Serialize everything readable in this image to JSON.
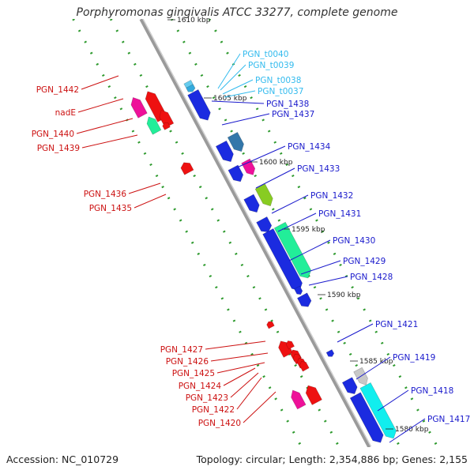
{
  "title": "Porphyromonas gingivalis ATCC 33277, complete genome",
  "footer": {
    "accession": "Accession: NC_010729",
    "summary": "Topology: circular; Length: 2,354,886 bp; Genes: 2,155"
  },
  "colors": {
    "backbone": "#9a9a9a",
    "tick_dots": "#2e9a2e",
    "label_forward": "#1a1acc",
    "label_reverse": "#cc1111",
    "label_rna": "#33bbee"
  },
  "axis": {
    "scale_labels": [
      "1610 kbp",
      "1605 kbp",
      "1600 kbp",
      "1595 kbp",
      "1590 kbp",
      "1585 kbp",
      "1580 kbp"
    ]
  },
  "genes": {
    "forward": [
      "PGN_1438",
      "PGN_1437",
      "PGN_1434",
      "PGN_1433",
      "PGN_1432",
      "PGN_1431",
      "PGN_1430",
      "PGN_1429",
      "PGN_1428",
      "PGN_1421",
      "PGN_1419",
      "PGN_1418",
      "PGN_1417"
    ],
    "rna": [
      "PGN_t0040",
      "PGN_t0039",
      "PGN_t0038",
      "PGN_t0037"
    ],
    "reverse": [
      "PGN_1442",
      "nadE",
      "PGN_1440",
      "PGN_1439",
      "PGN_1436",
      "PGN_1435",
      "PGN_1427",
      "PGN_1426",
      "PGN_1425",
      "PGN_1424",
      "PGN_1423",
      "PGN_1422",
      "PGN_1420"
    ]
  }
}
